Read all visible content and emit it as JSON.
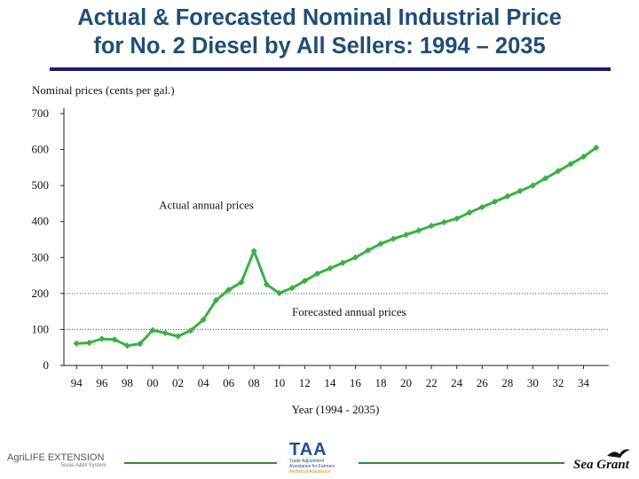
{
  "slide": {
    "title_line1": "Actual & Forecasted Nominal Industrial Price",
    "title_line2": "for No. 2 Diesel by All Sellers: 1994 – 2035"
  },
  "colors": {
    "series": "#3cb043",
    "title": "#1f4e79",
    "rule": "#1a1a7a",
    "footer_line": "#2e8b2e"
  },
  "chart_data": {
    "type": "line",
    "ylabel": "Nominal prices (cents per gal.)",
    "xlabel": "Year (1994 - 2035)",
    "ylim": [
      0,
      700
    ],
    "yticks": [
      0,
      100,
      200,
      300,
      400,
      500,
      600,
      700
    ],
    "xlim": [
      1993,
      2036
    ],
    "xticks": [
      1994,
      1996,
      1998,
      2000,
      2002,
      2004,
      2006,
      2008,
      2010,
      2012,
      2014,
      2016,
      2018,
      2020,
      2022,
      2024,
      2026,
      2028,
      2030,
      2032,
      2034
    ],
    "xtick_labels": [
      "94",
      "96",
      "98",
      "00",
      "02",
      "04",
      "06",
      "08",
      "10",
      "12",
      "14",
      "16",
      "18",
      "20",
      "22",
      "24",
      "26",
      "28",
      "30",
      "32",
      "34"
    ],
    "reference_lines": [
      100,
      200
    ],
    "series": [
      {
        "name": "Nominal industrial price, No. 2 diesel",
        "x": [
          1994,
          1995,
          1996,
          1997,
          1998,
          1999,
          2000,
          2001,
          2002,
          2003,
          2004,
          2005,
          2006,
          2007,
          2008,
          2009,
          2010,
          2011,
          2012,
          2013,
          2014,
          2015,
          2016,
          2017,
          2018,
          2019,
          2020,
          2021,
          2022,
          2023,
          2024,
          2025,
          2026,
          2027,
          2028,
          2029,
          2030,
          2031,
          2032,
          2033,
          2034,
          2035
        ],
        "values": [
          61,
          63,
          74,
          72,
          55,
          60,
          98,
          90,
          81,
          97,
          127,
          181,
          210,
          231,
          318,
          225,
          201,
          215,
          235,
          255,
          270,
          285,
          300,
          320,
          338,
          352,
          363,
          375,
          388,
          398,
          408,
          425,
          440,
          455,
          470,
          485,
          500,
          520,
          540,
          560,
          580,
          605
        ]
      }
    ],
    "annotations": [
      {
        "text": "Actual annual prices",
        "x": 2000.5,
        "y": 435
      },
      {
        "text": "Forecasted annual prices",
        "x": 2011,
        "y": 138
      }
    ]
  },
  "footer": {
    "agrilife_logo": "AgriLIFE EXTENSION",
    "agrilife_logo_sub": "Texas A&M System",
    "taa_logo": "TAA",
    "taa_logo_sub": "Trade Adjustment Assistance for Farmers",
    "taa_logo_tag": "Technical Assistance",
    "seagrant_logo": "Sea Grant"
  }
}
